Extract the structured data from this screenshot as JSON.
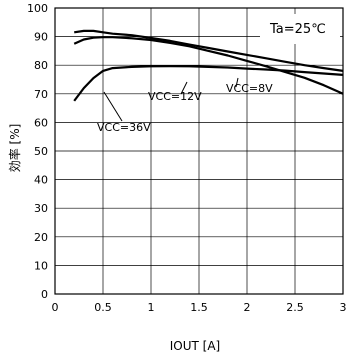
{
  "chart_data": {
    "type": "line",
    "xlabel": "IOUT [A]",
    "ylabel": "効率 [%]",
    "xlim": [
      0,
      3
    ],
    "ylim": [
      0,
      100
    ],
    "xticks": [
      "0",
      "0.5",
      "1",
      "1.5",
      "2",
      "2.5",
      "3"
    ],
    "yticks": [
      "0",
      "10",
      "20",
      "30",
      "40",
      "50",
      "60",
      "70",
      "80",
      "90",
      "100"
    ],
    "grid": true,
    "annotation": "Ta=25℃",
    "series": [
      {
        "name": "VCC=8V",
        "points": [
          [
            0.2,
            91.5
          ],
          [
            0.3,
            92.0
          ],
          [
            0.4,
            92.0
          ],
          [
            0.5,
            91.5
          ],
          [
            0.6,
            91.0
          ],
          [
            0.8,
            90.5
          ],
          [
            1.0,
            89.5
          ],
          [
            1.2,
            88.5
          ],
          [
            1.4,
            87.2
          ],
          [
            1.6,
            86.0
          ],
          [
            1.8,
            84.8
          ],
          [
            2.0,
            83.6
          ],
          [
            2.2,
            82.4
          ],
          [
            2.4,
            81.2
          ],
          [
            2.6,
            80.0
          ],
          [
            2.8,
            79.0
          ],
          [
            3.0,
            78.0
          ]
        ]
      },
      {
        "name": "VCC=12V",
        "points": [
          [
            0.2,
            87.5
          ],
          [
            0.3,
            89.0
          ],
          [
            0.4,
            89.6
          ],
          [
            0.5,
            89.8
          ],
          [
            0.6,
            89.8
          ],
          [
            0.8,
            89.4
          ],
          [
            1.0,
            88.8
          ],
          [
            1.2,
            87.8
          ],
          [
            1.4,
            86.6
          ],
          [
            1.6,
            85.0
          ],
          [
            1.8,
            83.4
          ],
          [
            2.0,
            81.5
          ],
          [
            2.2,
            79.6
          ],
          [
            2.4,
            77.6
          ],
          [
            2.6,
            75.6
          ],
          [
            2.8,
            73.0
          ],
          [
            3.0,
            70.0
          ]
        ]
      },
      {
        "name": "VCC=36V",
        "points": [
          [
            0.2,
            67.5
          ],
          [
            0.3,
            72.0
          ],
          [
            0.4,
            75.5
          ],
          [
            0.5,
            78.0
          ],
          [
            0.6,
            79.0
          ],
          [
            0.8,
            79.4
          ],
          [
            1.0,
            79.6
          ],
          [
            1.2,
            79.7
          ],
          [
            1.4,
            79.6
          ],
          [
            1.6,
            79.4
          ],
          [
            1.8,
            79.2
          ],
          [
            2.0,
            78.8
          ],
          [
            2.2,
            78.5
          ],
          [
            2.4,
            78.1
          ],
          [
            2.6,
            77.6
          ],
          [
            2.8,
            77.1
          ],
          [
            3.0,
            76.6
          ]
        ]
      }
    ],
    "labels": [
      {
        "text": "VCC=8V"
      },
      {
        "text": "VCC=12V"
      },
      {
        "text": "VCC=36V"
      }
    ]
  }
}
